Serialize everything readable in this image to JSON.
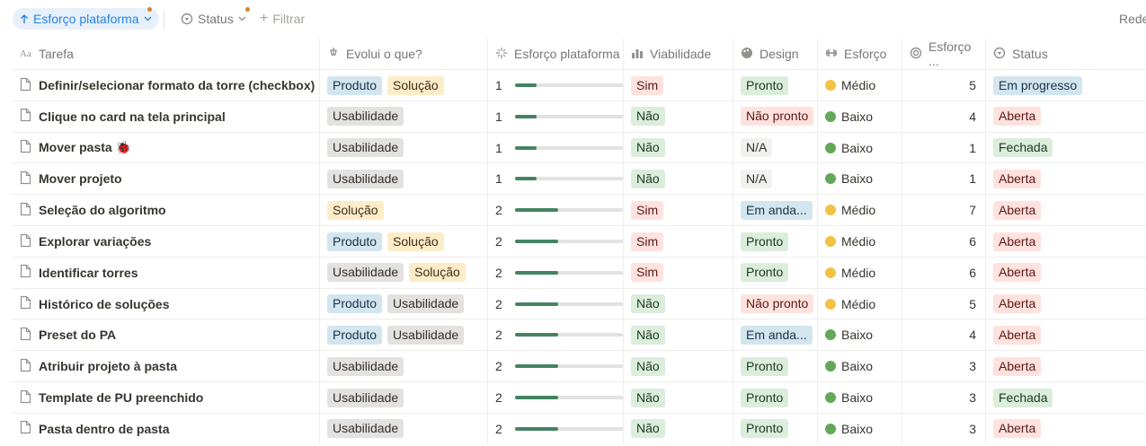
{
  "toolbar": {
    "sort": "Esforço plataforma",
    "status_filter": "Status",
    "add_filter": "Filtrar",
    "right_label": "Rede"
  },
  "table": {
    "columns": [
      "Tarefa",
      "Evolui o que?",
      "Esforço plataforma",
      "Viabilidade",
      "Design",
      "Esforço",
      "Esforço ...",
      "Status"
    ],
    "progress_max": 5,
    "rows": [
      {
        "task": "Definir/selecionar formato da torre (checkbox)",
        "evolves": [
          {
            "label": "Produto",
            "color": "blue"
          },
          {
            "label": "Solução",
            "color": "yellow"
          }
        ],
        "platform_effort": 1,
        "viability": {
          "label": "Sim",
          "color": "red"
        },
        "design": {
          "label": "Pronto",
          "color": "green"
        },
        "effort": {
          "label": "Médio",
          "color": "yellow"
        },
        "effort_score": 5,
        "status": {
          "label": "Em progresso",
          "color": "blue"
        }
      },
      {
        "task": "Clique no card na tela principal",
        "evolves": [
          {
            "label": "Usabilidade",
            "color": "gray"
          }
        ],
        "platform_effort": 1,
        "viability": {
          "label": "Não",
          "color": "green"
        },
        "design": {
          "label": "Não pronto",
          "color": "red"
        },
        "effort": {
          "label": "Baixo",
          "color": "green"
        },
        "effort_score": 4,
        "status": {
          "label": "Aberta",
          "color": "red"
        }
      },
      {
        "task": "Mover pasta 🐞",
        "evolves": [
          {
            "label": "Usabilidade",
            "color": "gray"
          }
        ],
        "platform_effort": 1,
        "viability": {
          "label": "Não",
          "color": "green"
        },
        "design": {
          "label": "N/A",
          "color": "light"
        },
        "effort": {
          "label": "Baixo",
          "color": "green"
        },
        "effort_score": 1,
        "status": {
          "label": "Fechada",
          "color": "green"
        }
      },
      {
        "task": "Mover projeto",
        "evolves": [
          {
            "label": "Usabilidade",
            "color": "gray"
          }
        ],
        "platform_effort": 1,
        "viability": {
          "label": "Não",
          "color": "green"
        },
        "design": {
          "label": "N/A",
          "color": "light"
        },
        "effort": {
          "label": "Baixo",
          "color": "green"
        },
        "effort_score": 1,
        "status": {
          "label": "Aberta",
          "color": "red"
        }
      },
      {
        "task": "Seleção do algoritmo",
        "evolves": [
          {
            "label": "Solução",
            "color": "yellow"
          }
        ],
        "platform_effort": 2,
        "viability": {
          "label": "Sim",
          "color": "red"
        },
        "design": {
          "label": "Em anda...",
          "color": "blue"
        },
        "effort": {
          "label": "Médio",
          "color": "yellow"
        },
        "effort_score": 7,
        "status": {
          "label": "Aberta",
          "color": "red"
        }
      },
      {
        "task": "Explorar variações",
        "evolves": [
          {
            "label": "Produto",
            "color": "blue"
          },
          {
            "label": "Solução",
            "color": "yellow"
          }
        ],
        "platform_effort": 2,
        "viability": {
          "label": "Sim",
          "color": "red"
        },
        "design": {
          "label": "Pronto",
          "color": "green"
        },
        "effort": {
          "label": "Médio",
          "color": "yellow"
        },
        "effort_score": 6,
        "status": {
          "label": "Aberta",
          "color": "red"
        }
      },
      {
        "task": "Identificar torres",
        "evolves": [
          {
            "label": "Usabilidade",
            "color": "gray"
          },
          {
            "label": "Solução",
            "color": "yellow"
          }
        ],
        "platform_effort": 2,
        "viability": {
          "label": "Sim",
          "color": "red"
        },
        "design": {
          "label": "Pronto",
          "color": "green"
        },
        "effort": {
          "label": "Médio",
          "color": "yellow"
        },
        "effort_score": 6,
        "status": {
          "label": "Aberta",
          "color": "red"
        }
      },
      {
        "task": "Histórico de soluções",
        "evolves": [
          {
            "label": "Produto",
            "color": "blue"
          },
          {
            "label": "Usabilidade",
            "color": "gray"
          }
        ],
        "platform_effort": 2,
        "viability": {
          "label": "Não",
          "color": "green"
        },
        "design": {
          "label": "Não pronto",
          "color": "red"
        },
        "effort": {
          "label": "Médio",
          "color": "yellow"
        },
        "effort_score": 5,
        "status": {
          "label": "Aberta",
          "color": "red"
        }
      },
      {
        "task": "Preset do PA",
        "evolves": [
          {
            "label": "Produto",
            "color": "blue"
          },
          {
            "label": "Usabilidade",
            "color": "gray"
          }
        ],
        "platform_effort": 2,
        "viability": {
          "label": "Não",
          "color": "green"
        },
        "design": {
          "label": "Em anda...",
          "color": "blue"
        },
        "effort": {
          "label": "Baixo",
          "color": "green"
        },
        "effort_score": 4,
        "status": {
          "label": "Aberta",
          "color": "red"
        }
      },
      {
        "task": "Atribuir projeto à pasta",
        "evolves": [
          {
            "label": "Usabilidade",
            "color": "gray"
          }
        ],
        "platform_effort": 2,
        "viability": {
          "label": "Não",
          "color": "green"
        },
        "design": {
          "label": "Pronto",
          "color": "green"
        },
        "effort": {
          "label": "Baixo",
          "color": "green"
        },
        "effort_score": 3,
        "status": {
          "label": "Aberta",
          "color": "red"
        }
      },
      {
        "task": "Template de PU preenchido",
        "evolves": [
          {
            "label": "Usabilidade",
            "color": "gray"
          }
        ],
        "platform_effort": 2,
        "viability": {
          "label": "Não",
          "color": "green"
        },
        "design": {
          "label": "Pronto",
          "color": "green"
        },
        "effort": {
          "label": "Baixo",
          "color": "green"
        },
        "effort_score": 3,
        "status": {
          "label": "Fechada",
          "color": "green"
        }
      },
      {
        "task": "Pasta dentro de pasta",
        "evolves": [
          {
            "label": "Usabilidade",
            "color": "gray"
          }
        ],
        "platform_effort": 2,
        "viability": {
          "label": "Não",
          "color": "green"
        },
        "design": {
          "label": "Pronto",
          "color": "green"
        },
        "effort": {
          "label": "Baixo",
          "color": "green"
        },
        "effort_score": 3,
        "status": {
          "label": "Aberta",
          "color": "red"
        }
      }
    ]
  }
}
